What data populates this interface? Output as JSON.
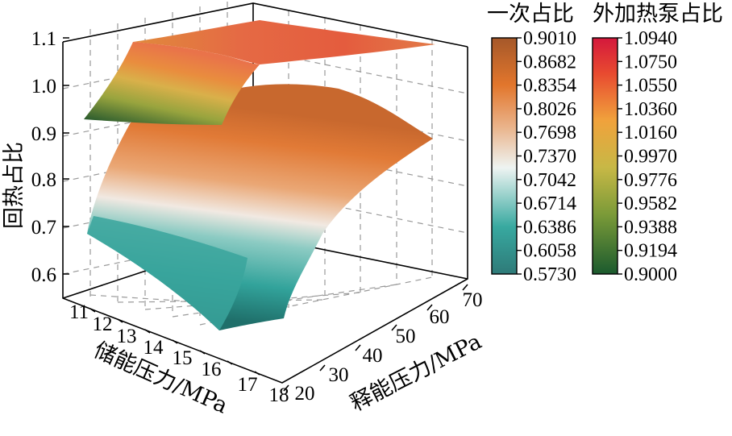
{
  "chart_data": {
    "type": "surface3d",
    "xlabel": "储能压力/MPa",
    "ylabel": "释能压力/MPa",
    "zlabel": "回热占比",
    "x_ticks": [
      "11",
      "12",
      "13",
      "14",
      "15",
      "16",
      "17",
      "18"
    ],
    "y_ticks": [
      "20",
      "30",
      "40",
      "50",
      "60",
      "70"
    ],
    "z_ticks": [
      "0.6",
      "0.7",
      "0.8",
      "0.9",
      "1.0",
      "1.1"
    ],
    "xlim": [
      11,
      18
    ],
    "ylim": [
      20,
      70
    ],
    "zlim": [
      0.55,
      1.1
    ],
    "grid": true,
    "series": [
      {
        "name": "一次占比",
        "colormap_colors": [
          "#2b7a78",
          "#38a9a0",
          "#eef4f2",
          "#e9a070",
          "#e2762c",
          "#a5582a"
        ],
        "colorbar_ticks": [
          "0.9010",
          "0.8682",
          "0.8354",
          "0.8026",
          "0.7698",
          "0.7370",
          "0.7042",
          "0.6714",
          "0.6386",
          "0.6058",
          "0.5730"
        ],
        "range": [
          0.573,
          0.901
        ]
      },
      {
        "name": "外加热泵占比",
        "colormap_colors": [
          "#1e5e30",
          "#7d9a3a",
          "#c7b846",
          "#f0a840",
          "#e2402e",
          "#d01a3a"
        ],
        "colorbar_ticks": [
          "1.0940",
          "1.0750",
          "1.0550",
          "1.0360",
          "1.0160",
          "0.9970",
          "0.9776",
          "0.9582",
          "0.9388",
          "0.9194",
          "0.9000"
        ],
        "range": [
          0.9,
          1.094
        ]
      }
    ]
  }
}
